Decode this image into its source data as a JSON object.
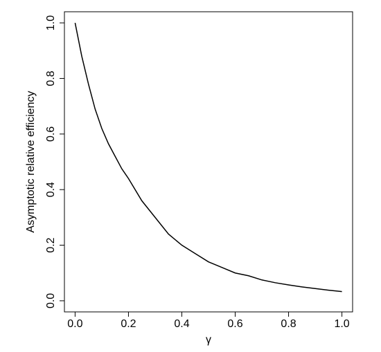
{
  "chart_data": {
    "type": "line",
    "xlabel": "γ",
    "ylabel": "Asymptotic relative efficiency",
    "x": [
      0,
      0.025,
      0.05,
      0.075,
      0.1,
      0.125,
      0.15,
      0.175,
      0.2,
      0.25,
      0.3,
      0.35,
      0.4,
      0.45,
      0.5,
      0.55,
      0.6,
      0.65,
      0.7,
      0.75,
      0.8,
      0.85,
      0.9,
      0.95,
      1
    ],
    "series": [
      {
        "color": "#000000",
        "values": [
          1,
          0.88,
          0.78,
          0.69,
          0.62,
          0.565,
          0.52,
          0.475,
          0.44,
          0.36,
          0.3,
          0.24,
          0.2,
          0.17,
          0.14,
          0.12,
          0.1,
          0.09,
          0.075,
          0.065,
          0.057,
          0.05,
          0.044,
          0.038,
          0.033
        ]
      }
    ],
    "xlim": [
      -0.04,
      1.04
    ],
    "ylim": [
      -0.04,
      1.04
    ],
    "xticks": [
      {
        "value": 0,
        "label": "0.0"
      },
      0.2,
      0.4,
      0.6,
      0.8,
      {
        "value": 1,
        "label": "1.0"
      }
    ],
    "yticks": [
      {
        "value": 0,
        "label": "0.0"
      },
      0.2,
      0.4,
      0.6,
      0.8,
      {
        "value": 1,
        "label": "1.0"
      }
    ]
  }
}
